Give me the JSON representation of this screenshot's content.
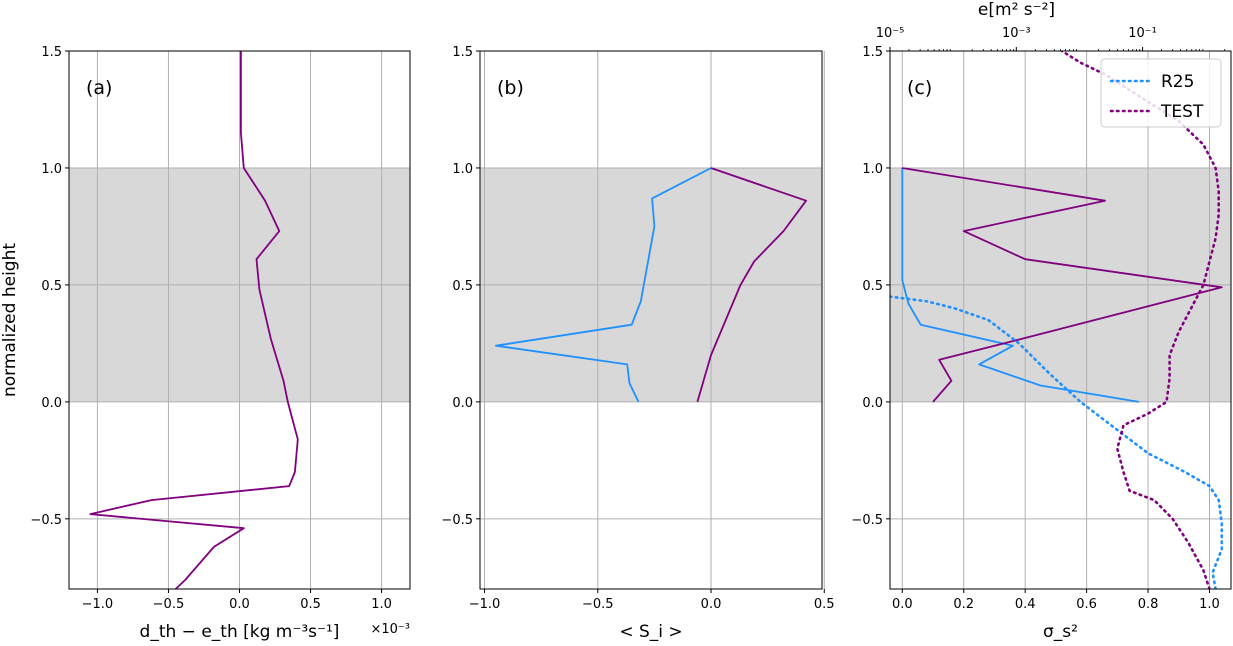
{
  "chart_data": [
    {
      "type": "line",
      "panel_label": "(a)",
      "xlabel": "d_th − e_th [kg m⁻³s⁻¹]",
      "ylabel": "normalized height",
      "x_offset_text": "×10⁻³",
      "xlim": [
        -1.2,
        1.2
      ],
      "ylim": [
        -0.8,
        1.5
      ],
      "xticks": [
        "−1.0",
        "−0.5",
        "0.0",
        "0.5",
        "1.0"
      ],
      "yticks": [
        "−0.5",
        "0.0",
        "0.5",
        "1.0",
        "1.5"
      ],
      "shaded_band": [
        0.0,
        1.0
      ],
      "grid": true,
      "series": [
        {
          "color": "#800080",
          "style": "solid",
          "points": [
            [
              -0.45,
              -0.8
            ],
            [
              -0.38,
              -0.76
            ],
            [
              -0.18,
              -0.62
            ],
            [
              0.03,
              -0.54
            ],
            [
              -1.05,
              -0.48
            ],
            [
              -0.62,
              -0.42
            ],
            [
              0.35,
              -0.36
            ],
            [
              0.39,
              -0.3
            ],
            [
              0.41,
              -0.16
            ],
            [
              0.34,
              0.0
            ],
            [
              0.31,
              0.09
            ],
            [
              0.22,
              0.27
            ],
            [
              0.14,
              0.48
            ],
            [
              0.12,
              0.61
            ],
            [
              0.28,
              0.73
            ],
            [
              0.18,
              0.86
            ],
            [
              0.03,
              1.0
            ],
            [
              0.01,
              1.15
            ],
            [
              0.01,
              1.5
            ]
          ]
        }
      ]
    },
    {
      "type": "line",
      "panel_label": "(b)",
      "xlabel": "< S_i >",
      "xlim": [
        -1.02,
        0.49
      ],
      "ylim": [
        -0.8,
        1.5
      ],
      "xticks": [
        "−1.0",
        "−0.5",
        "0.0",
        "0.5"
      ],
      "yticks": [
        "−0.5",
        "0.0",
        "0.5",
        "1.0",
        "1.5"
      ],
      "shaded_band": [
        0.0,
        1.0
      ],
      "grid": true,
      "series": [
        {
          "color": "#1e90ff",
          "style": "solid",
          "points": [
            [
              -0.32,
              0.0
            ],
            [
              -0.36,
              0.08
            ],
            [
              -0.37,
              0.16
            ],
            [
              -0.95,
              0.24
            ],
            [
              -0.35,
              0.33
            ],
            [
              -0.31,
              0.43
            ],
            [
              -0.25,
              0.75
            ],
            [
              -0.26,
              0.87
            ],
            [
              0.0,
              1.0
            ]
          ]
        },
        {
          "color": "#800080",
          "style": "solid",
          "points": [
            [
              -0.06,
              0.0
            ],
            [
              0.0,
              0.2
            ],
            [
              0.13,
              0.5
            ],
            [
              0.19,
              0.6
            ],
            [
              0.32,
              0.73
            ],
            [
              0.42,
              0.86
            ],
            [
              0.0,
              1.0
            ]
          ]
        }
      ]
    },
    {
      "type": "line",
      "panel_label": "(c)",
      "xlabel": "σ_s²",
      "top_xlabel": "e[m² s⁻²]",
      "xlim": [
        -0.04,
        1.07
      ],
      "ylim": [
        -0.8,
        1.5
      ],
      "xticks": [
        "0.0",
        "0.2",
        "0.4",
        "0.6",
        "0.8",
        "1.0"
      ],
      "top_xticks": [
        "10⁻⁵",
        "10⁻³",
        "10⁻¹"
      ],
      "top_xscale": "log",
      "top_xlim_exp": [
        -5,
        0.4
      ],
      "yticks": [
        "−0.5",
        "0.0",
        "0.5",
        "1.0",
        "1.5"
      ],
      "shaded_band": [
        0.0,
        1.0
      ],
      "grid": true,
      "legend": {
        "location": "upper right",
        "entries": [
          {
            "label": "R25",
            "color": "#1e90ff"
          },
          {
            "label": "TEST",
            "color": "#800080"
          }
        ]
      },
      "series": [
        {
          "label": "R25",
          "color": "#1e90ff",
          "style": "solid",
          "points": [
            [
              0.77,
              0.0
            ],
            [
              0.45,
              0.07
            ],
            [
              0.25,
              0.16
            ],
            [
              0.36,
              0.24
            ],
            [
              0.06,
              0.33
            ],
            [
              0.02,
              0.42
            ],
            [
              0.0,
              0.52
            ],
            [
              0.0,
              1.0
            ]
          ]
        },
        {
          "label": "TEST",
          "color": "#800080",
          "style": "solid",
          "points": [
            [
              0.1,
              0.0
            ],
            [
              0.16,
              0.09
            ],
            [
              0.12,
              0.18
            ],
            [
              0.42,
              0.28
            ],
            [
              1.04,
              0.49
            ],
            [
              0.4,
              0.61
            ],
            [
              0.2,
              0.73
            ],
            [
              0.66,
              0.86
            ],
            [
              0.0,
              1.0
            ]
          ]
        },
        {
          "label": "R25 e",
          "color": "#1e90ff",
          "style": "dotted",
          "points": [
            [
              1.02,
              -0.8
            ],
            [
              1.01,
              -0.73
            ],
            [
              1.04,
              -0.63
            ],
            [
              1.04,
              -0.52
            ],
            [
              1.03,
              -0.42
            ],
            [
              1.0,
              -0.36
            ],
            [
              0.92,
              -0.3
            ],
            [
              0.8,
              -0.22
            ],
            [
              0.68,
              -0.1
            ],
            [
              0.58,
              0.0
            ],
            [
              0.48,
              0.12
            ],
            [
              0.38,
              0.25
            ],
            [
              0.28,
              0.35
            ],
            [
              0.17,
              0.4
            ],
            [
              0.08,
              0.43
            ],
            [
              -0.04,
              0.45
            ]
          ]
        },
        {
          "label": "TEST e",
          "color": "#800080",
          "style": "dotted",
          "points": [
            [
              1.0,
              -0.8
            ],
            [
              0.98,
              -0.72
            ],
            [
              0.93,
              -0.6
            ],
            [
              0.88,
              -0.5
            ],
            [
              0.82,
              -0.42
            ],
            [
              0.74,
              -0.38
            ],
            [
              0.72,
              -0.3
            ],
            [
              0.7,
              -0.2
            ],
            [
              0.72,
              -0.1
            ],
            [
              0.8,
              -0.05
            ],
            [
              0.86,
              0.0
            ],
            [
              0.87,
              0.1
            ],
            [
              0.87,
              0.2
            ],
            [
              0.9,
              0.3
            ],
            [
              0.94,
              0.4
            ],
            [
              0.98,
              0.5
            ],
            [
              1.0,
              0.6
            ],
            [
              1.02,
              0.7
            ],
            [
              1.03,
              0.8
            ],
            [
              1.03,
              0.9
            ],
            [
              1.02,
              1.0
            ],
            [
              0.98,
              1.1
            ],
            [
              0.9,
              1.2
            ],
            [
              0.78,
              1.3
            ],
            [
              0.66,
              1.4
            ],
            [
              0.58,
              1.45
            ],
            [
              0.52,
              1.5
            ]
          ]
        }
      ]
    }
  ]
}
